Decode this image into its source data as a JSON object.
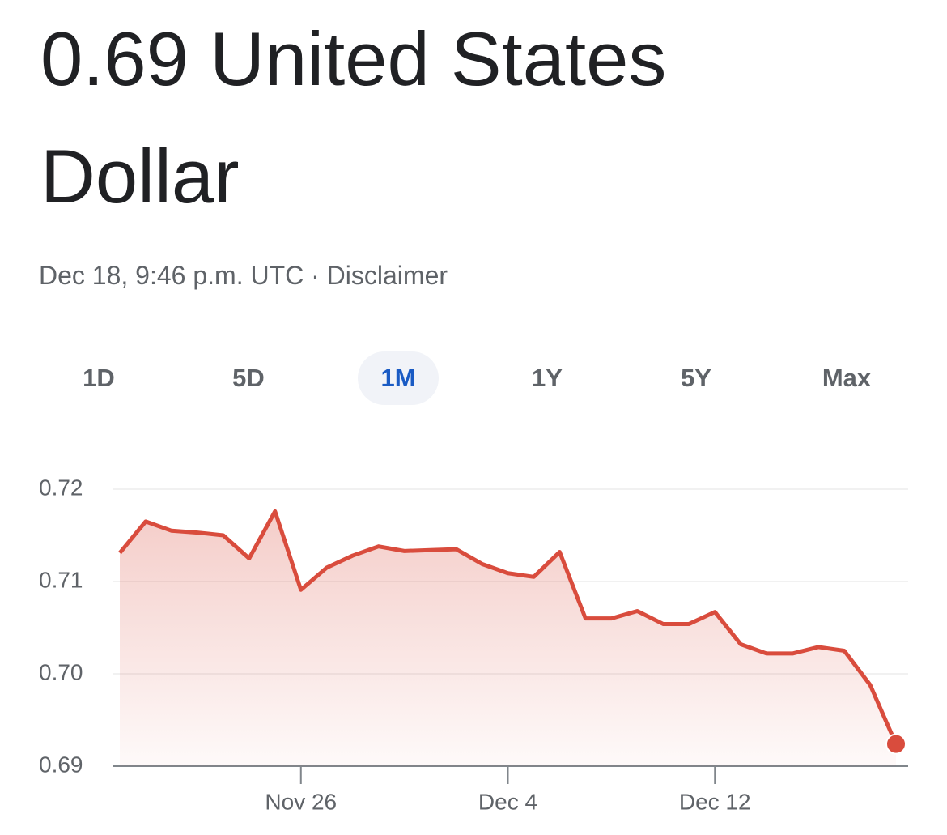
{
  "header": {
    "title": "0.69 United States Dollar",
    "subtitle": "Dec 18, 9:46 p.m. UTC · Disclaimer"
  },
  "tabs": [
    "1D",
    "5D",
    "1M",
    "1Y",
    "5Y",
    "Max"
  ],
  "chart_data": {
    "type": "line",
    "categories": [
      null,
      null,
      null,
      null,
      null,
      null,
      null,
      "Nov 26",
      null,
      null,
      null,
      null,
      null,
      null,
      null,
      "Dec 4",
      null,
      null,
      null,
      null,
      null,
      null,
      null,
      "Dec 12",
      null,
      null,
      null,
      null,
      null,
      null,
      null
    ],
    "values": [
      0.7131,
      0.7165,
      0.7155,
      0.7153,
      0.715,
      0.7125,
      0.7176,
      0.7091,
      0.7115,
      0.7128,
      0.7138,
      0.7133,
      0.7134,
      0.7135,
      0.7119,
      0.7109,
      0.7105,
      0.7132,
      0.706,
      0.706,
      0.7068,
      0.7054,
      0.7054,
      0.7067,
      0.7032,
      0.7022,
      0.7022,
      0.7029,
      0.7025,
      0.6988,
      0.6924
    ],
    "color": "#d94c3d",
    "ylim": [
      0.69,
      0.72
    ],
    "yticks": [
      0.69,
      {
        "value": 0.7,
        "label": "0.70"
      },
      0.71,
      0.72
    ],
    "grid": true
  }
}
